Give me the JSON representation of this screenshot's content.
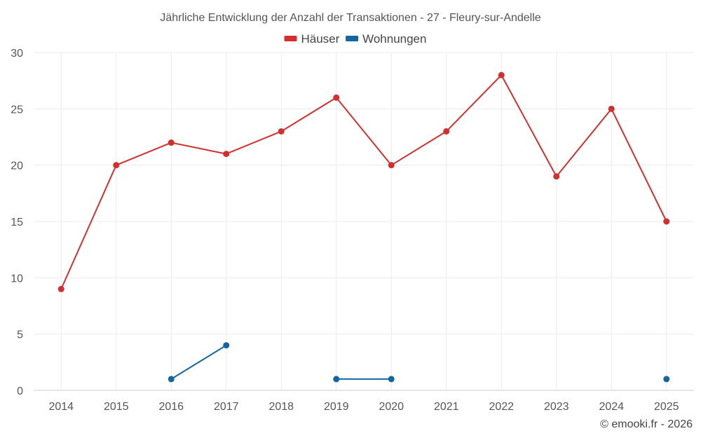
{
  "chart_data": {
    "type": "line",
    "title": "Jährliche Entwicklung der Anzahl der Transaktionen - 27 - Fleury-sur-Andelle",
    "xlabel": "",
    "ylabel": "",
    "categories": [
      "2014",
      "2015",
      "2016",
      "2017",
      "2018",
      "2019",
      "2020",
      "2021",
      "2022",
      "2023",
      "2024",
      "2025"
    ],
    "ylim": [
      0,
      30
    ],
    "yticks": [
      0,
      5,
      10,
      15,
      20,
      25,
      30
    ],
    "grid": true,
    "legend_position": "top-center",
    "series": [
      {
        "name": "Häuser",
        "color": "#d32f2f",
        "values": [
          9,
          20,
          22,
          21,
          23,
          26,
          20,
          23,
          28,
          19,
          25,
          15
        ]
      },
      {
        "name": "Wohnungen",
        "color": "#1565a0",
        "values": [
          null,
          null,
          1,
          4,
          null,
          1,
          1,
          null,
          null,
          null,
          null,
          1
        ]
      }
    ]
  },
  "credit": "© emooki.fr - 2026"
}
